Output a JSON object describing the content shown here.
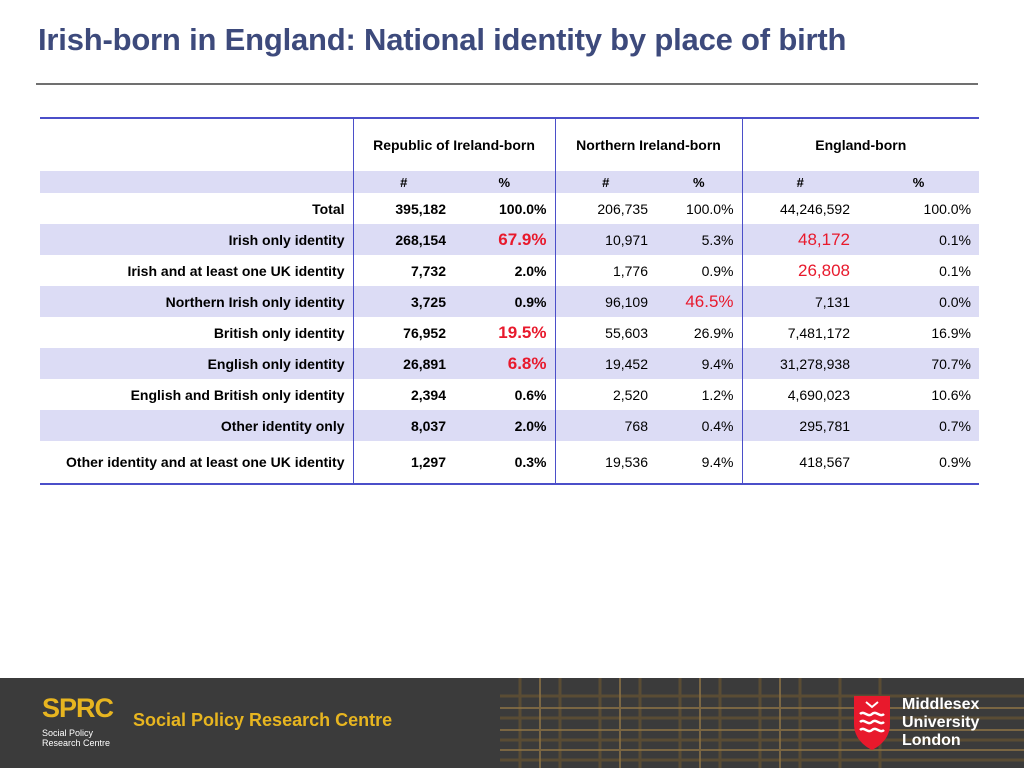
{
  "title": "Irish-born in England: National identity by place of birth",
  "table": {
    "groups": [
      "Republic of Ireland-born",
      "Northern Ireland-born",
      "England-born"
    ],
    "subheaders": [
      "#",
      "%",
      "#",
      "%",
      "#",
      "%"
    ],
    "rows": [
      {
        "label": "Total",
        "cells": [
          "395,182",
          "100.0%",
          "206,735",
          "100.0%",
          "44,246,592",
          "100.0%"
        ]
      },
      {
        "label": "Irish only identity",
        "cells": [
          "268,154",
          "67.9%",
          "10,971",
          "5.3%",
          "48,172",
          "0.1%"
        ]
      },
      {
        "label": "Irish and at least one UK identity",
        "cells": [
          "7,732",
          "2.0%",
          "1,776",
          "0.9%",
          "26,808",
          "0.1%"
        ]
      },
      {
        "label": "Northern Irish only identity",
        "cells": [
          "3,725",
          "0.9%",
          "96,109",
          "46.5%",
          "7,131",
          "0.0%"
        ]
      },
      {
        "label": "British only identity",
        "cells": [
          "76,952",
          "19.5%",
          "55,603",
          "26.9%",
          "7,481,172",
          "16.9%"
        ]
      },
      {
        "label": "English only identity",
        "cells": [
          "26,891",
          "6.8%",
          "19,452",
          "9.4%",
          "31,278,938",
          "70.7%"
        ]
      },
      {
        "label": "English and British only identity",
        "cells": [
          "2,394",
          "0.6%",
          "2,520",
          "1.2%",
          "4,690,023",
          "10.6%"
        ]
      },
      {
        "label": "Other identity only",
        "cells": [
          "8,037",
          "2.0%",
          "768",
          "0.4%",
          "295,781",
          "0.7%"
        ]
      },
      {
        "label": "Other identity and at least one UK identity",
        "cells": [
          "1,297",
          "0.3%",
          "19,536",
          "9.4%",
          "418,567",
          "0.9%"
        ]
      }
    ],
    "highlight_color": "#e8192c",
    "rule_color": "#4b4fc9",
    "shade_color": "#dcdcf5"
  },
  "footer": {
    "sprc_mark": "SPRC",
    "sprc_sub": "Social Policy Research Centre",
    "sprc_name": "Social Policy Research Centre",
    "university_line1": "Middlesex",
    "university_line2": "University",
    "university_line3": "London",
    "accent_color": "#e7b520",
    "background_color": "#3b3b3b"
  }
}
